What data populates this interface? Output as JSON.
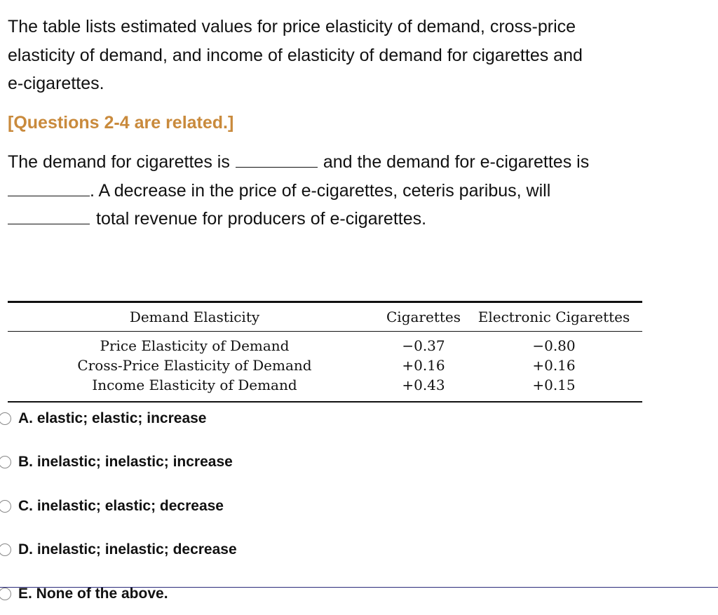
{
  "intro_lines": [
    "The table lists estimated values for price elasticity of demand, cross-price",
    "elasticity of demand, and income of elasticity of demand for cigarettes and",
    "e-cigarettes."
  ],
  "note": "[Questions 2-4 are related.]",
  "question": {
    "part1": "The demand for cigarettes is",
    "part2": "and the demand for e-cigarettes is",
    "part3": ". A decrease in the price of e-cigarettes, ceteris paribus, will",
    "part4": "total revenue for producers of e-cigarettes."
  },
  "table": {
    "headers": [
      "Demand Elasticity",
      "Cigarettes",
      "Electronic Cigarettes"
    ],
    "rows": [
      [
        "Price Elasticity of Demand",
        "−0.37",
        "−0.80"
      ],
      [
        "Cross-Price Elasticity of Demand",
        "+0.16",
        "+0.16"
      ],
      [
        "Income Elasticity of Demand",
        "+0.43",
        "+0.15"
      ]
    ]
  },
  "options": [
    {
      "label": "A. elastic; elastic; increase",
      "selected": false
    },
    {
      "label": "B. inelastic; inelastic; increase",
      "selected": false
    },
    {
      "label": "C. inelastic; elastic; decrease",
      "selected": false
    },
    {
      "label": "D. inelastic; inelastic; decrease",
      "selected": false
    },
    {
      "label": "E. None of the above.",
      "selected": false
    }
  ],
  "colors": {
    "note": "#c98a3c",
    "text": "#111111",
    "divider": "#2a2a7a"
  }
}
